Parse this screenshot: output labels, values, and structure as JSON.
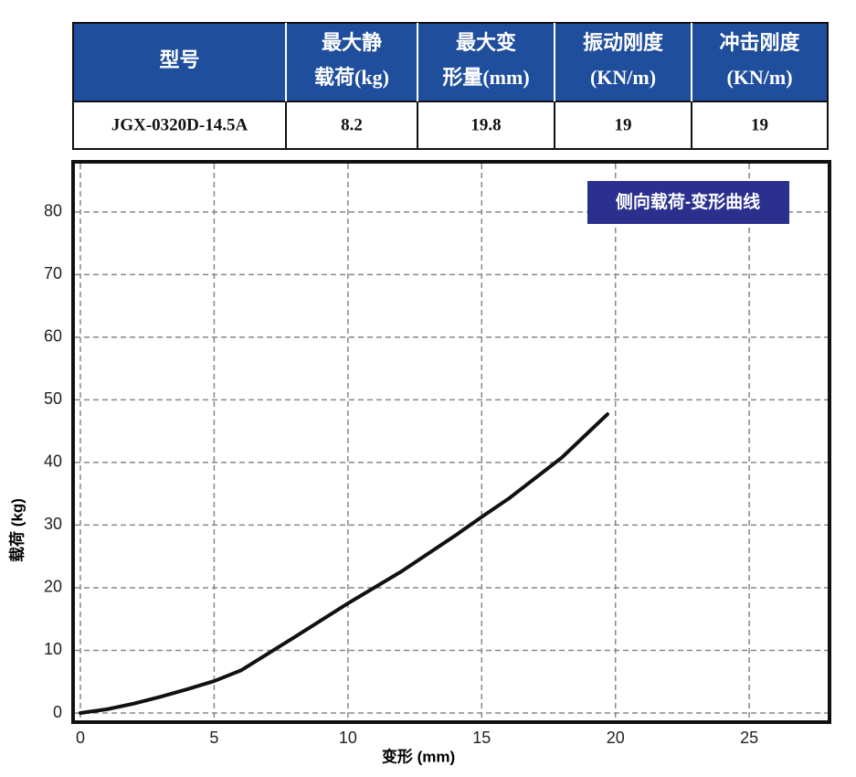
{
  "table": {
    "header": [
      [
        "型号"
      ],
      [
        "最大静",
        "载荷(kg)"
      ],
      [
        "最大变",
        "形量(mm)"
      ],
      [
        "振动刚度",
        "(KN/m)"
      ],
      [
        "冲击刚度",
        "(KN/m)"
      ]
    ],
    "rows": [
      [
        "JGX-0320D-14.5A",
        "8.2",
        "19.8",
        "19",
        "19"
      ]
    ]
  },
  "chart_data": {
    "type": "line",
    "annotation": "侧向载荷-变形曲线",
    "x_label": "变形 (mm)",
    "y_label": "载荷 (kg)",
    "x": [
      0,
      1,
      2,
      3,
      4,
      5,
      6,
      8,
      10,
      12,
      14,
      15,
      16,
      18,
      19.7
    ],
    "series": [
      {
        "color": "#111111",
        "values": [
          0,
          0.6,
          1.5,
          2.6,
          3.8,
          5.1,
          6.8,
          12.1,
          17.5,
          22.6,
          28.3,
          31.3,
          34.2,
          40.8,
          47.7
        ]
      }
    ],
    "xlim": [
      0,
      28
    ],
    "xticks": [
      0,
      5,
      10,
      15,
      20,
      25
    ],
    "ylim": [
      0,
      88
    ],
    "yticks": [
      0,
      10,
      20,
      30,
      40,
      50,
      60,
      70,
      80
    ],
    "grid": true
  }
}
